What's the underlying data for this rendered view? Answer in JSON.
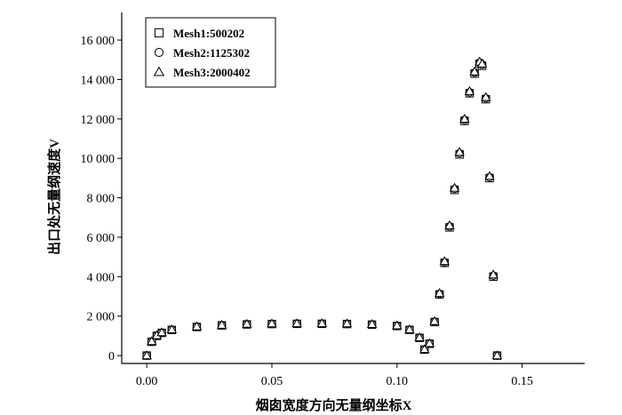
{
  "chart_data": {
    "type": "scatter",
    "title": "",
    "xlabel": "烟囱宽度方向无量纲坐标X",
    "ylabel": "出口处无量纲速度V",
    "xlim": [
      -0.01,
      0.175
    ],
    "ylim": [
      -400,
      17400
    ],
    "x_ticks": [
      0.0,
      0.05,
      0.1,
      0.15
    ],
    "x_tick_labels": [
      "0.00",
      "0.05",
      "0.10",
      "0.15"
    ],
    "y_ticks": [
      0,
      2000,
      4000,
      6000,
      8000,
      10000,
      12000,
      14000,
      16000
    ],
    "y_tick_labels": [
      "0",
      "2 000",
      "4 000",
      "6 000",
      "8 000",
      "10 000",
      "12 000",
      "14 000",
      "16 000"
    ],
    "grid": false,
    "legend_position": "top-left",
    "series": [
      {
        "name": "Mesh1:500202",
        "marker": "square",
        "x": [
          0.0,
          0.002,
          0.004,
          0.006,
          0.01,
          0.02,
          0.03,
          0.04,
          0.05,
          0.06,
          0.07,
          0.08,
          0.09,
          0.1,
          0.105,
          0.109,
          0.111,
          0.113,
          0.115,
          0.117,
          0.119,
          0.121,
          0.123,
          0.125,
          0.127,
          0.129,
          0.131,
          0.133,
          0.134,
          0.1355,
          0.137,
          0.1385,
          0.14
        ],
        "values": [
          0,
          700,
          1000,
          1150,
          1300,
          1450,
          1530,
          1580,
          1600,
          1610,
          1610,
          1600,
          1570,
          1500,
          1300,
          900,
          300,
          600,
          1700,
          3100,
          4700,
          6500,
          8400,
          10200,
          11900,
          13300,
          14300,
          14800,
          14700,
          13000,
          9000,
          4000,
          0
        ]
      },
      {
        "name": "Mesh2:1125302",
        "marker": "circle",
        "x": [
          0.0,
          0.002,
          0.004,
          0.006,
          0.01,
          0.02,
          0.03,
          0.04,
          0.05,
          0.06,
          0.07,
          0.08,
          0.09,
          0.1,
          0.105,
          0.109,
          0.111,
          0.113,
          0.115,
          0.117,
          0.119,
          0.121,
          0.123,
          0.125,
          0.127,
          0.129,
          0.131,
          0.133,
          0.134,
          0.1355,
          0.137,
          0.1385,
          0.14
        ],
        "values": [
          0,
          710,
          1010,
          1160,
          1310,
          1460,
          1540,
          1590,
          1610,
          1620,
          1620,
          1610,
          1580,
          1510,
          1310,
          910,
          310,
          610,
          1720,
          3130,
          4740,
          6550,
          8450,
          10260,
          11950,
          13350,
          14350,
          14850,
          14750,
          13050,
          9050,
          4050,
          0
        ]
      },
      {
        "name": "Mesh3:2000402",
        "marker": "triangle",
        "x": [
          0.0,
          0.002,
          0.004,
          0.006,
          0.01,
          0.02,
          0.03,
          0.04,
          0.05,
          0.06,
          0.07,
          0.08,
          0.09,
          0.1,
          0.105,
          0.109,
          0.111,
          0.113,
          0.115,
          0.117,
          0.119,
          0.121,
          0.123,
          0.125,
          0.127,
          0.129,
          0.131,
          0.133,
          0.134,
          0.1355,
          0.137,
          0.1385,
          0.14
        ],
        "values": [
          0,
          720,
          1020,
          1170,
          1320,
          1470,
          1550,
          1600,
          1620,
          1630,
          1630,
          1620,
          1590,
          1520,
          1320,
          920,
          320,
          620,
          1740,
          3160,
          4780,
          6600,
          8500,
          10320,
          12000,
          13400,
          14400,
          14900,
          14800,
          13100,
          9100,
          4100,
          0
        ]
      }
    ]
  }
}
